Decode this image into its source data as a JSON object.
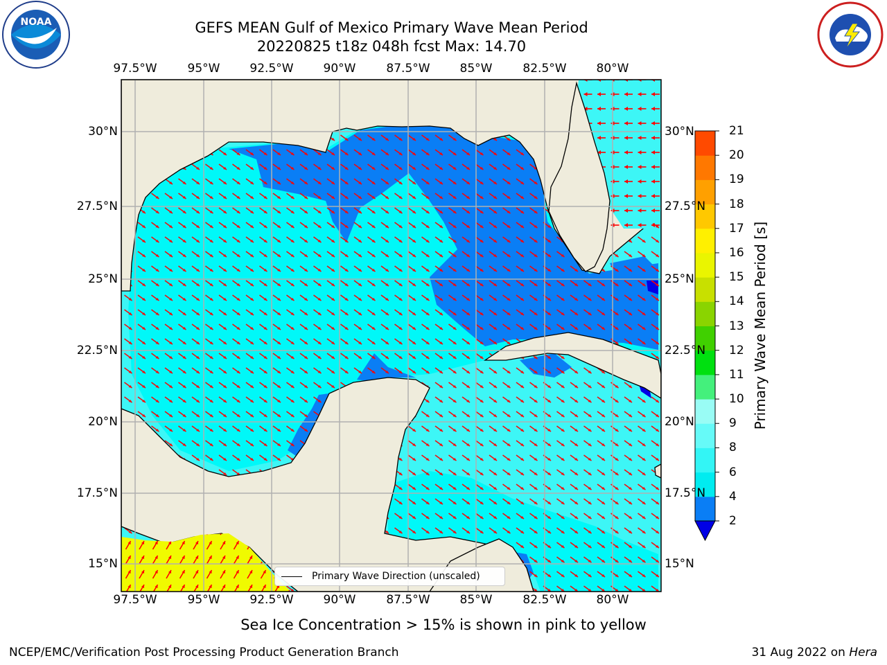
{
  "title": "GEFS MEAN Gulf of Mexico Primary Wave Mean Period",
  "subtitle": "20220825 t18z 048h fcst   Max: 14.70",
  "logos": {
    "left": "NOAA - NATIONAL OCEANIC AND ATMOSPHERIC ADMINISTRATION - U.S. DEPARTMENT OF COMMERCE",
    "right": "NATIONAL WEATHER SERVICE"
  },
  "map": {
    "lon_range": [
      -98,
      -78.5
    ],
    "lat_range": [
      14,
      31.9
    ],
    "lon_ticks": [
      "97.5°W",
      "95°W",
      "92.5°W",
      "90°W",
      "87.5°W",
      "85°W",
      "82.5°W",
      "80°W"
    ],
    "lat_ticks": [
      "30°N",
      "27.5°N",
      "25°N",
      "22.5°N",
      "20°N",
      "17.5°N",
      "15°N"
    ],
    "grid": true,
    "land_color": "#efecdc",
    "ocean_levels": [
      {
        "label": "2-4 s",
        "color": "#0a7ef5"
      },
      {
        "label": "4-6 s",
        "color": "#00f8f8"
      },
      {
        "label": "6-8 s",
        "color": "#3df6f6"
      },
      {
        "label": "below 2 s",
        "color": "#0000e6"
      },
      {
        "label": "14-15 s",
        "color": "#f0fa00"
      }
    ],
    "arrow_color": "#ff0000",
    "legend_label": "Primary Wave Direction (unscaled)"
  },
  "colorbar": {
    "label": "Primary Wave Mean Period [s]",
    "ticks": [
      "2",
      "4",
      "6",
      "8",
      "9",
      "10",
      "11",
      "12",
      "13",
      "14",
      "15",
      "16",
      "17",
      "18",
      "19",
      "20",
      "21"
    ],
    "colors": [
      "#0a7ef5",
      "#00ecf0",
      "#33f5f5",
      "#66faf8",
      "#99fcf5",
      "#44f07c",
      "#00e010",
      "#40d000",
      "#8ad400",
      "#c8e000",
      "#eaf500",
      "#fff000",
      "#ffc800",
      "#ffa000",
      "#ff7800",
      "#ff4a00",
      "#ff1800",
      "#ff0000"
    ],
    "under_color": "#0000e6"
  },
  "note": "Sea Ice Concentration > 15% is shown in pink to yellow",
  "footer_left": "NCEP/EMC/Verification Post Processing Product Generation Branch",
  "footer_date": "31 Aug 2022 on",
  "footer_machine": "Hera"
}
